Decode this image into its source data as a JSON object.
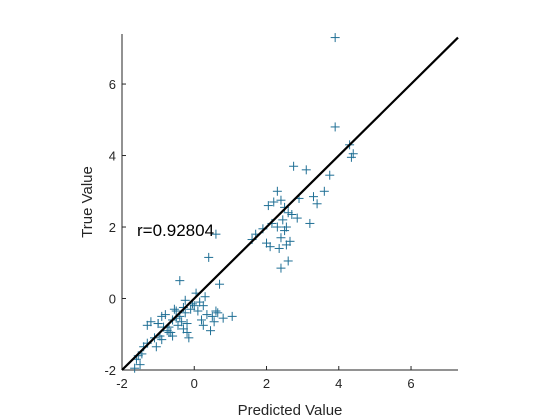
{
  "chart_data": {
    "type": "scatter",
    "title": "",
    "xlabel": "Predicted Value",
    "ylabel": "True Value",
    "xlim": [
      -2,
      7.3
    ],
    "ylim": [
      -2,
      7.4
    ],
    "xticks": [
      -2,
      0,
      2,
      4,
      6
    ],
    "yticks": [
      -2,
      0,
      2,
      4,
      6
    ],
    "grid": false,
    "marker": "plus",
    "marker_color": "#1f6f95",
    "line_color": "#000000",
    "annotation": "r=0.92804",
    "fit_line": {
      "x": [
        -2,
        7.3
      ],
      "y": [
        -2,
        7.3
      ]
    },
    "points": {
      "x": [
        3.9,
        3.9,
        4.3,
        4.4,
        4.35,
        3.1,
        3.75,
        2.75,
        2.3,
        3.6,
        3.3,
        2.4,
        2.2,
        2.05,
        2.5,
        2.9,
        3.4,
        2.6,
        2.7,
        2.85,
        2.45,
        2.15,
        2.3,
        2.55,
        1.9,
        1.7,
        2.5,
        2.65,
        2.4,
        2.0,
        2.55,
        2.35,
        1.6,
        3.2,
        2.1,
        2.4,
        2.6,
        0.6,
        0.4,
        0.7,
        0.3,
        0.15,
        0.0,
        -0.1,
        -0.25,
        -0.4,
        -0.5,
        -0.6,
        -0.35,
        -0.2,
        -0.45,
        -0.7,
        -0.3,
        0.2,
        0.5,
        0.8,
        1.05,
        0.55,
        0.35,
        0.1,
        -0.05,
        -0.55,
        -0.8,
        -1.0,
        -0.9,
        -1.2,
        -1.3,
        -1.05,
        -0.95,
        -0.75,
        -0.65,
        -0.6,
        -0.15,
        0.25,
        0.45,
        0.65,
        -1.55,
        -1.6,
        -1.45,
        -1.5,
        -1.65,
        -1.4,
        -1.3,
        -1.1,
        -0.4,
        0.05,
        -0.25,
        -0.3,
        0.6,
        0.25,
        -0.85,
        -0.5,
        -0.7,
        -0.9,
        -1.0,
        -0.2
      ],
      "y": [
        7.3,
        4.8,
        4.3,
        4.05,
        3.95,
        3.6,
        3.45,
        3.7,
        3.0,
        3.0,
        2.85,
        2.75,
        2.7,
        2.6,
        2.55,
        2.8,
        2.65,
        2.4,
        2.35,
        2.25,
        2.2,
        2.1,
        2.0,
        2.0,
        1.95,
        1.8,
        1.9,
        1.6,
        1.7,
        1.55,
        1.5,
        1.4,
        1.65,
        2.1,
        1.45,
        0.85,
        1.05,
        1.8,
        1.15,
        0.4,
        0.05,
        -0.1,
        -0.2,
        -0.3,
        -0.4,
        -0.5,
        -0.55,
        -0.6,
        -0.65,
        -0.7,
        -0.75,
        -0.8,
        -0.85,
        -0.6,
        -0.5,
        -0.55,
        -0.5,
        -0.65,
        -0.45,
        -0.35,
        -0.15,
        -0.3,
        -0.45,
        -0.7,
        -0.5,
        -0.65,
        -1.25,
        -1.35,
        -1.05,
        -0.9,
        -0.95,
        -1.05,
        -1.1,
        -0.75,
        -0.9,
        -0.4,
        -1.6,
        -1.7,
        -1.55,
        -1.85,
        -1.95,
        -1.35,
        -0.75,
        -1.1,
        0.5,
        0.15,
        -0.05,
        -0.25,
        -0.35,
        -0.2,
        -0.8,
        -0.35,
        -0.95,
        -1.15,
        -0.7,
        -0.95
      ]
    }
  }
}
